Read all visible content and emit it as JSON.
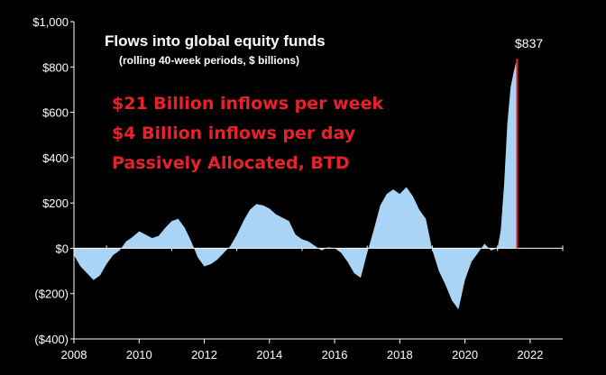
{
  "chart_data": {
    "type": "area",
    "title": "Flows into global equity funds",
    "subtitle": "(rolling 40-week periods, $ billions)",
    "xlabel": "",
    "ylabel": "",
    "ylim": [
      -400,
      1000
    ],
    "xlim": [
      2008,
      2023
    ],
    "y_ticks": [
      -400,
      -200,
      0,
      200,
      400,
      600,
      800,
      1000
    ],
    "y_tick_labels": [
      "($400)",
      "($200)",
      "$0",
      "$200",
      "$400",
      "$600",
      "$800",
      "$1,000"
    ],
    "x_ticks": [
      2008,
      2010,
      2012,
      2014,
      2016,
      2018,
      2020,
      2022
    ],
    "x_tick_labels": [
      "2008",
      "2010",
      "2012",
      "2014",
      "2016",
      "2018",
      "2020",
      "2022"
    ],
    "grid": false,
    "colors": {
      "fill": "#a9d4f5",
      "peak_line": "#e8222a",
      "axis": "#ffffff",
      "annotation": "#e8222a"
    },
    "annotations": [
      "$21 Billion inflows per week",
      "$4 Billion inflows per day",
      "Passively Allocated, BTD"
    ],
    "peak_label": "$837",
    "series": [
      {
        "x": [
          2008.0,
          2008.2,
          2008.4,
          2008.6,
          2008.8,
          2009.0,
          2009.2,
          2009.4,
          2009.6,
          2009.8,
          2010.0,
          2010.2,
          2010.4,
          2010.6,
          2010.8,
          2011.0,
          2011.2,
          2011.4,
          2011.6,
          2011.8,
          2012.0,
          2012.2,
          2012.4,
          2012.6,
          2012.8,
          2013.0,
          2013.2,
          2013.4,
          2013.6,
          2013.8,
          2014.0,
          2014.2,
          2014.4,
          2014.6,
          2014.8,
          2015.0,
          2015.2,
          2015.4,
          2015.6,
          2015.8,
          2016.0,
          2016.2,
          2016.4,
          2016.6,
          2016.8,
          2017.0,
          2017.2,
          2017.4,
          2017.6,
          2017.8,
          2018.0,
          2018.2,
          2018.4,
          2018.6,
          2018.8,
          2019.0,
          2019.2,
          2019.4,
          2019.6,
          2019.8,
          2020.0,
          2020.2,
          2020.4,
          2020.6,
          2020.8,
          2021.0,
          2021.1,
          2021.2,
          2021.3,
          2021.4,
          2021.5,
          2021.6
        ],
        "values": [
          -30,
          -80,
          -110,
          -140,
          -120,
          -70,
          -30,
          -10,
          30,
          50,
          75,
          60,
          45,
          55,
          90,
          120,
          130,
          90,
          30,
          -40,
          -80,
          -70,
          -50,
          -20,
          10,
          60,
          120,
          170,
          195,
          190,
          175,
          150,
          135,
          120,
          60,
          40,
          30,
          10,
          -10,
          5,
          0,
          -20,
          -60,
          -110,
          -130,
          -20,
          80,
          190,
          240,
          260,
          240,
          270,
          230,
          170,
          130,
          -10,
          -100,
          -160,
          -230,
          -270,
          -140,
          -60,
          -20,
          20,
          -10,
          0,
          80,
          280,
          550,
          710,
          780,
          837
        ]
      }
    ]
  }
}
